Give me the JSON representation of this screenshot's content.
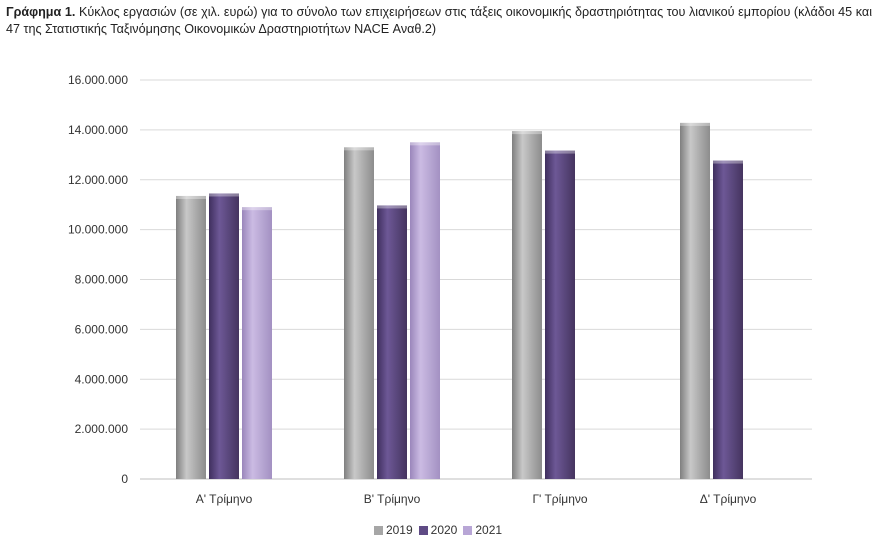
{
  "caption": {
    "label": "Γράφημα 1.",
    "text": "Κύκλος εργασιών (σε χιλ. ευρώ) για το σύνολο των επιχειρήσεων στις τάξεις οικονομικής δραστηριότητας του λιανικού εμπορίου (κλάδοι 45 και 47 της Στατιστικής Ταξινόμησης Οικονομικών Δραστηριοτήτων NACE Αναθ.2)"
  },
  "chart_data": {
    "type": "bar",
    "categories": [
      "Α' Τρίμηνο",
      "Β' Τρίμηνο",
      "Γ' Τρίμηνο",
      "Δ' Τρίμηνο"
    ],
    "series": [
      {
        "name": "2019",
        "color": "#a6a6a6",
        "values": [
          11350000,
          13300000,
          13950000,
          14280000
        ]
      },
      {
        "name": "2020",
        "color": "#5f4b85",
        "values": [
          11450000,
          10970000,
          13170000,
          12770000
        ]
      },
      {
        "name": "2021",
        "color": "#b8a6d6",
        "values": [
          10900000,
          13500000,
          null,
          null
        ]
      }
    ],
    "ylim": [
      0,
      16000000
    ],
    "yticks": [
      "0",
      "2.000.000",
      "4.000.000",
      "6.000.000",
      "8.000.000",
      "10.000.000",
      "12.000.000",
      "14.000.000",
      "16.000.000"
    ],
    "grid": true,
    "legend": "bottom"
  }
}
